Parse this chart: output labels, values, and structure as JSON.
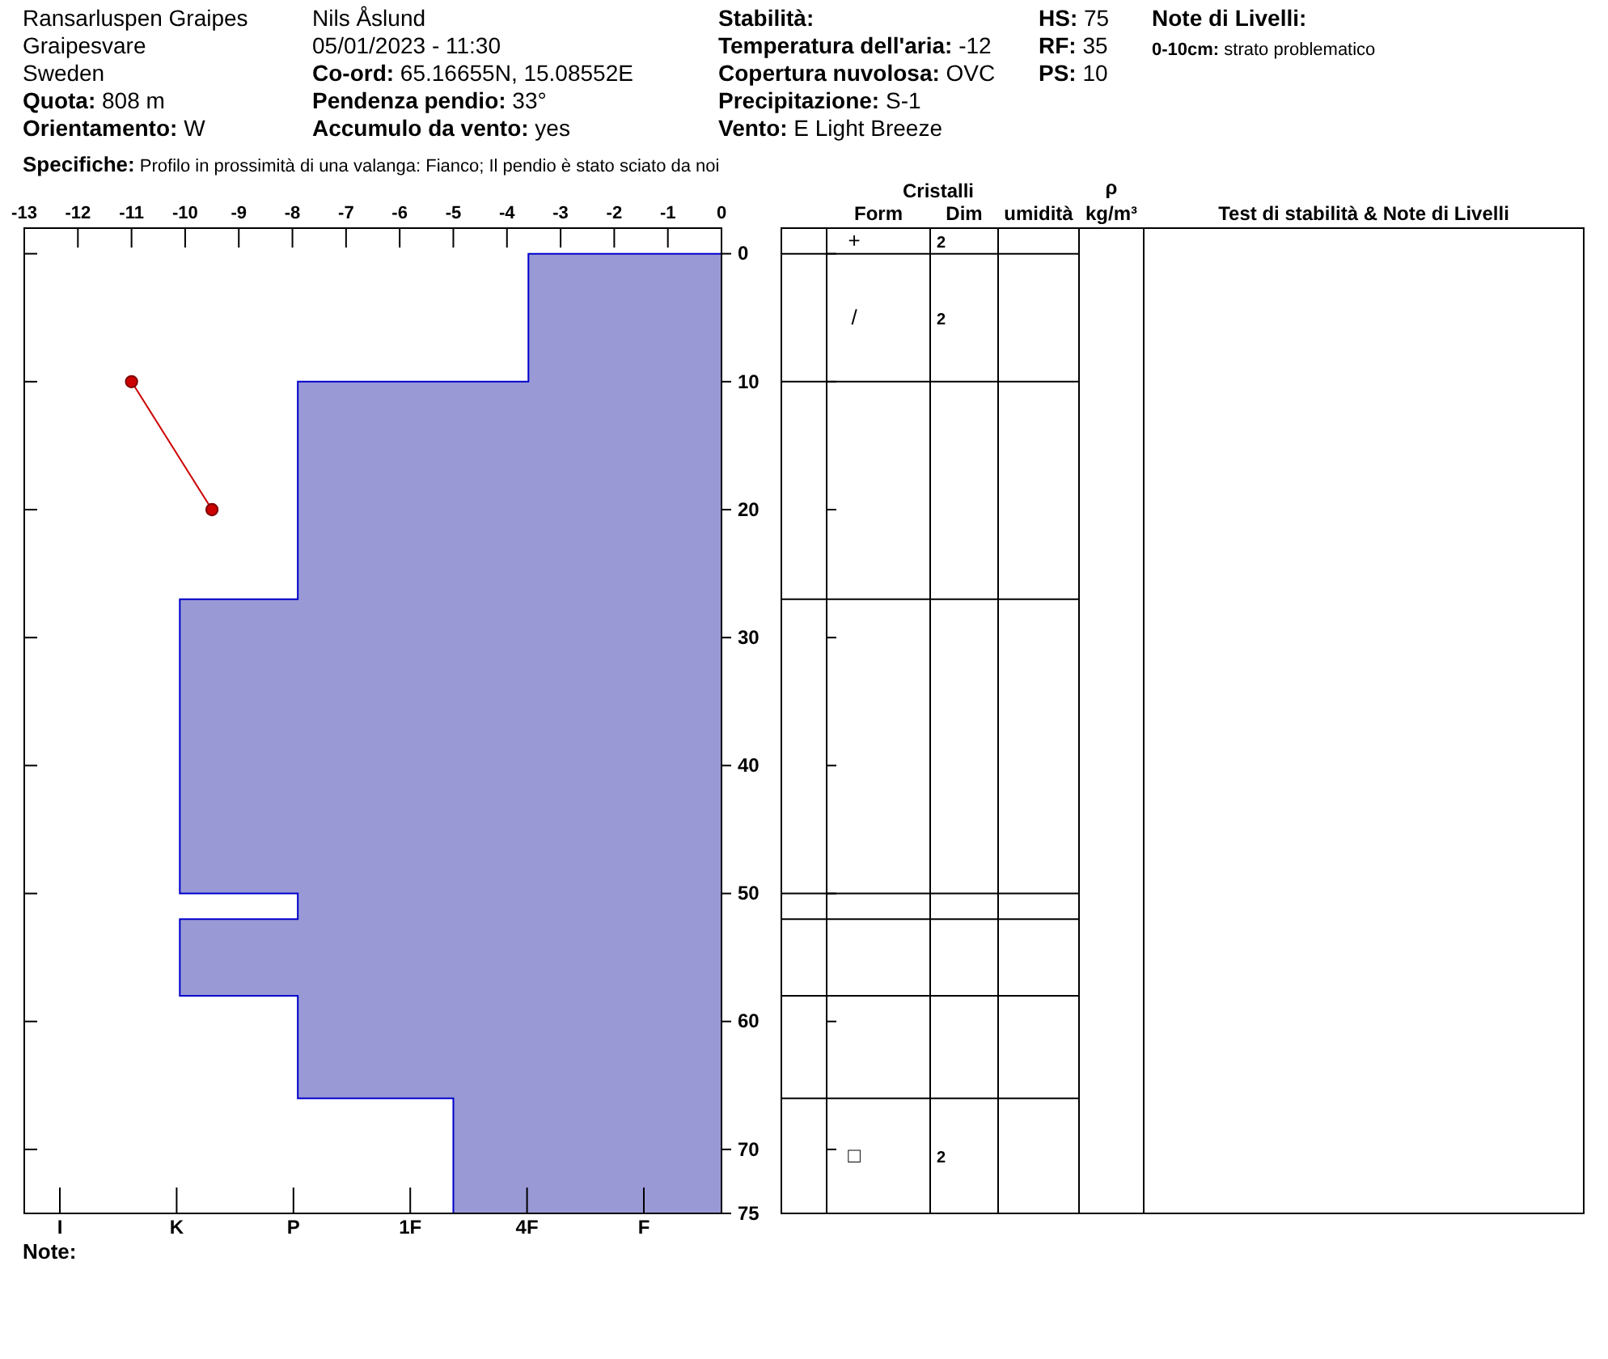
{
  "chart_data": {
    "type": "area",
    "categories": [
      "I",
      "K",
      "P",
      "1F",
      "4F",
      "F"
    ],
    "x2lim": [
      -13,
      0
    ],
    "x2ticks": [
      -13,
      -12,
      -11,
      -10,
      -9,
      -8,
      -7,
      -6,
      -5,
      -4,
      -3,
      -2,
      -1,
      0
    ],
    "ylim": [
      75,
      -2
    ],
    "yticks": [
      0,
      10,
      20,
      30,
      40,
      50,
      60,
      70,
      75
    ],
    "series": [
      {
        "type": "area",
        "axis": "x2",
        "color": "#9999d6",
        "x": [
          0,
          -3.6,
          -3.6,
          -7.9,
          -7.9,
          -10.1,
          -10.1,
          -7.9,
          -7.9,
          -10.1,
          -10.1,
          -7.9,
          -7.9,
          -5.0,
          -5.0,
          0
        ],
        "values": [
          0,
          0,
          10,
          10,
          27,
          27,
          50,
          50,
          52,
          52,
          58,
          58,
          66,
          66,
          75,
          75
        ]
      },
      {
        "type": "line",
        "axis": "x2",
        "color": "#cc0000",
        "marker": "circle",
        "x": [
          -11,
          -9.5
        ],
        "values": [
          10,
          20
        ]
      }
    ],
    "annotations": [
      "Ransarluspen Graipes",
      "Graipesvare",
      "Sweden",
      "Quota: 808 m",
      "Orientamento: W",
      "Nils Åslund",
      "05/01/2023 - 11:30",
      "Co-ord: 65.16655N, 15.08552E",
      "Pendenza pendio: 33°",
      "Accumulo da vento: yes",
      "Stabilità:",
      "Temperatura dell'aria: -12",
      "Copertura nuvolosa: OVC",
      "Precipitazione: S-1",
      "Vento:  E Light Breeze",
      "HS: 75",
      "RF: 35",
      "PS: 10",
      "Note di Livelli:",
      "0-10cm: strato problematico",
      "Specifiche: Profilo in prossimità di una valanga: Fianco; Il pendio è stato sciato da noi",
      "Note:",
      "Cristalli",
      "Form",
      "Dim",
      "umidità",
      "ρ\nkg/m³",
      "Test di stabilità & Note di Livelli",
      "+",
      "2",
      "/",
      "2",
      "□",
      "2"
    ]
  }
}
